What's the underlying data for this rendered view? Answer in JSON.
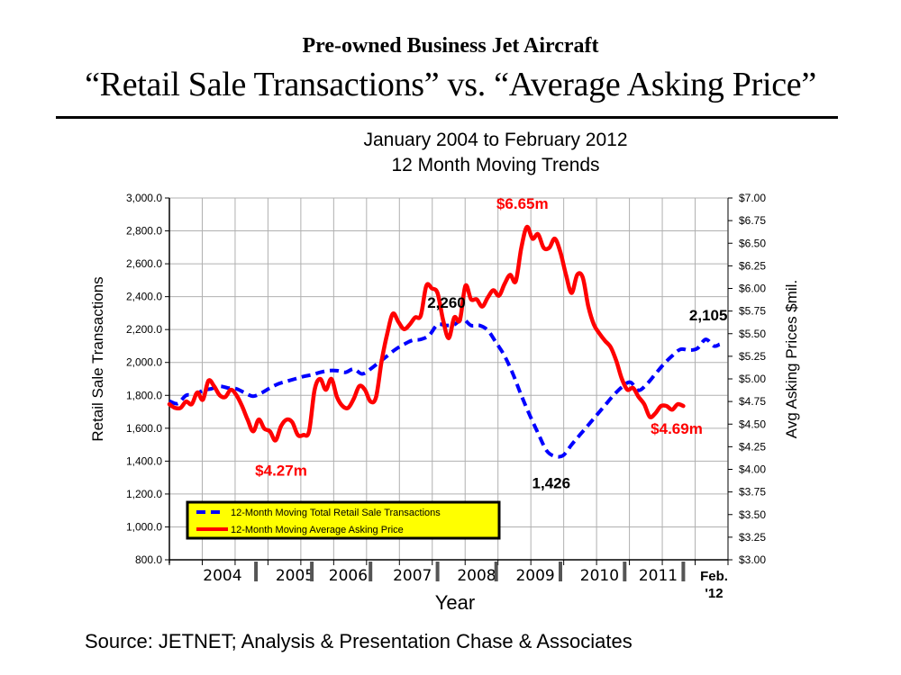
{
  "header": {
    "title_line1": "Pre-owned Business Jet Aircraft",
    "title_line2": "“Retail Sale Transactions” vs. “Average Asking Price”",
    "subtitle_line1": "January 2004 to February 2012",
    "subtitle_line2": "12 Month Moving Trends"
  },
  "footer": {
    "source": "Source: JETNET; Analysis & Presentation Chase & Associates"
  },
  "chart_data": {
    "type": "line",
    "title": "January 2004 to February 2012 — 12 Month Moving Trends",
    "xlabel": "Year",
    "ylabel": "Retail Sale Transactions",
    "ylabel_right": "Avg Asking Prices $mil.",
    "x_unit": "month index (0 = left edge of plot, 100 = right edge)",
    "xlim": [
      0,
      100
    ],
    "ylim": [
      800,
      3000
    ],
    "ylim_right": [
      3.0,
      7.0
    ],
    "grid": true,
    "y_ticks": [
      "3,000.0",
      "2,800.0",
      "2,600.0",
      "2,400.0",
      "2,200.0",
      "2,000.0",
      "1,800.0",
      "1,600.0",
      "1,400.0",
      "1,200.0",
      "1,000.0",
      "800.0"
    ],
    "y_tick_values": [
      3000,
      2800,
      2600,
      2400,
      2200,
      2000,
      1800,
      1600,
      1400,
      1200,
      1000,
      800
    ],
    "y_right_ticks": [
      "$7.00",
      "$6.75",
      "$6.50",
      "$6.25",
      "$6.00",
      "$5.75",
      "$5.50",
      "$5.25",
      "$5.00",
      "$4.75",
      "$4.50",
      "$4.25",
      "$4.00",
      "$3.75",
      "$3.50",
      "$3.25",
      "$3.00"
    ],
    "y_right_tick_values": [
      7.0,
      6.75,
      6.5,
      6.25,
      6.0,
      5.75,
      5.5,
      5.25,
      5.0,
      4.75,
      4.5,
      4.25,
      4.0,
      3.75,
      3.5,
      3.25,
      3.0
    ],
    "x_category_labels": [
      {
        "label": "2004",
        "x": 9.5
      },
      {
        "label": "2005",
        "x": 22.5
      },
      {
        "label": "2006",
        "x": 32
      },
      {
        "label": "2007",
        "x": 43.5
      },
      {
        "label": "2008",
        "x": 55
      },
      {
        "label": "2009",
        "x": 65.5
      },
      {
        "label": "2010",
        "x": 77
      },
      {
        "label": "2011",
        "x": 87.5
      }
    ],
    "x_final_label": "Feb. '12",
    "year_separators_x": [
      15.5,
      25.5,
      36,
      48,
      58.5,
      70,
      81.5,
      92
    ],
    "legend": {
      "placement": "bottom-left",
      "background": "#ffff00",
      "entries": [
        {
          "label": "12-Month Moving Total Retail Sale Transactions",
          "style": "dashed",
          "color": "#0000ff"
        },
        {
          "label": "12-Month Moving Average Asking Price",
          "style": "solid",
          "color": "#ff0000"
        }
      ]
    },
    "series": [
      {
        "name": "12-Month Moving Total Retail Sale Transactions",
        "axis": "left",
        "color": "#0000ff",
        "style": "dashed",
        "points": [
          [
            0,
            1765
          ],
          [
            1.5,
            1750
          ],
          [
            3,
            1800
          ],
          [
            4.5,
            1800
          ],
          [
            6,
            1830
          ],
          [
            7.5,
            1840
          ],
          [
            9,
            1855
          ],
          [
            10.5,
            1845
          ],
          [
            12,
            1840
          ],
          [
            13.5,
            1815
          ],
          [
            15,
            1795
          ],
          [
            16.5,
            1815
          ],
          [
            18,
            1845
          ],
          [
            19.5,
            1870
          ],
          [
            21,
            1885
          ],
          [
            22.5,
            1900
          ],
          [
            24,
            1915
          ],
          [
            25.5,
            1925
          ],
          [
            27,
            1940
          ],
          [
            28.5,
            1950
          ],
          [
            30,
            1950
          ],
          [
            31.5,
            1940
          ],
          [
            33,
            1960
          ],
          [
            34.5,
            1930
          ],
          [
            36,
            1960
          ],
          [
            37.5,
            2000
          ],
          [
            39,
            2040
          ],
          [
            40.5,
            2080
          ],
          [
            42,
            2110
          ],
          [
            43.5,
            2135
          ],
          [
            45,
            2140
          ],
          [
            46.5,
            2165
          ],
          [
            48,
            2230
          ],
          [
            49.5,
            2225
          ],
          [
            51,
            2230
          ],
          [
            52.5,
            2265
          ],
          [
            54,
            2225
          ],
          [
            55.5,
            2225
          ],
          [
            57,
            2195
          ],
          [
            58.5,
            2120
          ],
          [
            60,
            2040
          ],
          [
            61.5,
            1930
          ],
          [
            63,
            1800
          ],
          [
            64.5,
            1680
          ],
          [
            66,
            1570
          ],
          [
            67.5,
            1465
          ],
          [
            69,
            1430
          ],
          [
            70.5,
            1435
          ],
          [
            72,
            1500
          ],
          [
            73.5,
            1560
          ],
          [
            75,
            1620
          ],
          [
            76.5,
            1680
          ],
          [
            78,
            1740
          ],
          [
            79.5,
            1800
          ],
          [
            81,
            1850
          ],
          [
            82.5,
            1880
          ],
          [
            84,
            1830
          ],
          [
            85.5,
            1870
          ],
          [
            87,
            1930
          ],
          [
            88.5,
            1990
          ],
          [
            90,
            2040
          ],
          [
            91.5,
            2080
          ],
          [
            93,
            2075
          ],
          [
            94.5,
            2085
          ],
          [
            96,
            2140
          ],
          [
            97.5,
            2100
          ],
          [
            98.5,
            2110
          ]
        ],
        "annotations": [
          {
            "text": "2,260",
            "x": 52.5,
            "y": 2260
          },
          {
            "text": "1,426",
            "x": 69,
            "y": 1426
          },
          {
            "text": "2,105",
            "x": 96,
            "y": 2140
          }
        ]
      },
      {
        "name": "12-Month Moving Average Asking Price",
        "axis": "right",
        "color": "#ff0000",
        "style": "solid",
        "points": [
          [
            0,
            4.72
          ],
          [
            1,
            4.68
          ],
          [
            2,
            4.68
          ],
          [
            3,
            4.75
          ],
          [
            4,
            4.72
          ],
          [
            5,
            4.85
          ],
          [
            6,
            4.77
          ],
          [
            7,
            4.98
          ],
          [
            8,
            4.92
          ],
          [
            9,
            4.82
          ],
          [
            10,
            4.8
          ],
          [
            11,
            4.88
          ],
          [
            12,
            4.82
          ],
          [
            13,
            4.7
          ],
          [
            14,
            4.55
          ],
          [
            15,
            4.42
          ],
          [
            16,
            4.55
          ],
          [
            17,
            4.45
          ],
          [
            18,
            4.42
          ],
          [
            19,
            4.32
          ],
          [
            20,
            4.48
          ],
          [
            21,
            4.55
          ],
          [
            22,
            4.52
          ],
          [
            23,
            4.38
          ],
          [
            24,
            4.38
          ],
          [
            25,
            4.42
          ],
          [
            26,
            4.88
          ],
          [
            27,
            5.0
          ],
          [
            28,
            4.88
          ],
          [
            29,
            5.0
          ],
          [
            30,
            4.8
          ],
          [
            31,
            4.7
          ],
          [
            32,
            4.68
          ],
          [
            33,
            4.78
          ],
          [
            34,
            4.92
          ],
          [
            35,
            4.88
          ],
          [
            36,
            4.75
          ],
          [
            37,
            4.8
          ],
          [
            38,
            5.2
          ],
          [
            39,
            5.5
          ],
          [
            40,
            5.72
          ],
          [
            41,
            5.63
          ],
          [
            42,
            5.55
          ],
          [
            43,
            5.6
          ],
          [
            44,
            5.68
          ],
          [
            45,
            5.7
          ],
          [
            46,
            6.03
          ],
          [
            47,
            6.0
          ],
          [
            48,
            5.95
          ],
          [
            49,
            5.65
          ],
          [
            50,
            5.45
          ],
          [
            51,
            5.68
          ],
          [
            52,
            5.65
          ],
          [
            53,
            6.03
          ],
          [
            54,
            5.88
          ],
          [
            55,
            5.88
          ],
          [
            56,
            5.8
          ],
          [
            57,
            5.9
          ],
          [
            58,
            5.98
          ],
          [
            59,
            5.92
          ],
          [
            60,
            6.05
          ],
          [
            61,
            6.15
          ],
          [
            62,
            6.08
          ],
          [
            63,
            6.45
          ],
          [
            64,
            6.68
          ],
          [
            65,
            6.55
          ],
          [
            66,
            6.6
          ],
          [
            67,
            6.45
          ],
          [
            68,
            6.45
          ],
          [
            69,
            6.55
          ],
          [
            70,
            6.4
          ],
          [
            71,
            6.15
          ],
          [
            72,
            5.95
          ],
          [
            73,
            6.15
          ],
          [
            74,
            6.12
          ],
          [
            75,
            5.8
          ],
          [
            76,
            5.6
          ],
          [
            77,
            5.5
          ],
          [
            78,
            5.42
          ],
          [
            79,
            5.35
          ],
          [
            80,
            5.2
          ],
          [
            81,
            5.0
          ],
          [
            82,
            4.88
          ],
          [
            83,
            4.9
          ],
          [
            84,
            4.8
          ],
          [
            85,
            4.72
          ],
          [
            86,
            4.58
          ],
          [
            87,
            4.62
          ],
          [
            88,
            4.7
          ],
          [
            89,
            4.7
          ],
          [
            90,
            4.66
          ],
          [
            91,
            4.72
          ],
          [
            92,
            4.7
          ]
        ],
        "annotations": [
          {
            "text": "$4.27m",
            "x": 20,
            "y": 4.27
          },
          {
            "text": "$6.65m",
            "x": 64,
            "y": 6.65
          },
          {
            "text": "$4.69m",
            "x": 90,
            "y": 4.69
          }
        ]
      }
    ]
  }
}
